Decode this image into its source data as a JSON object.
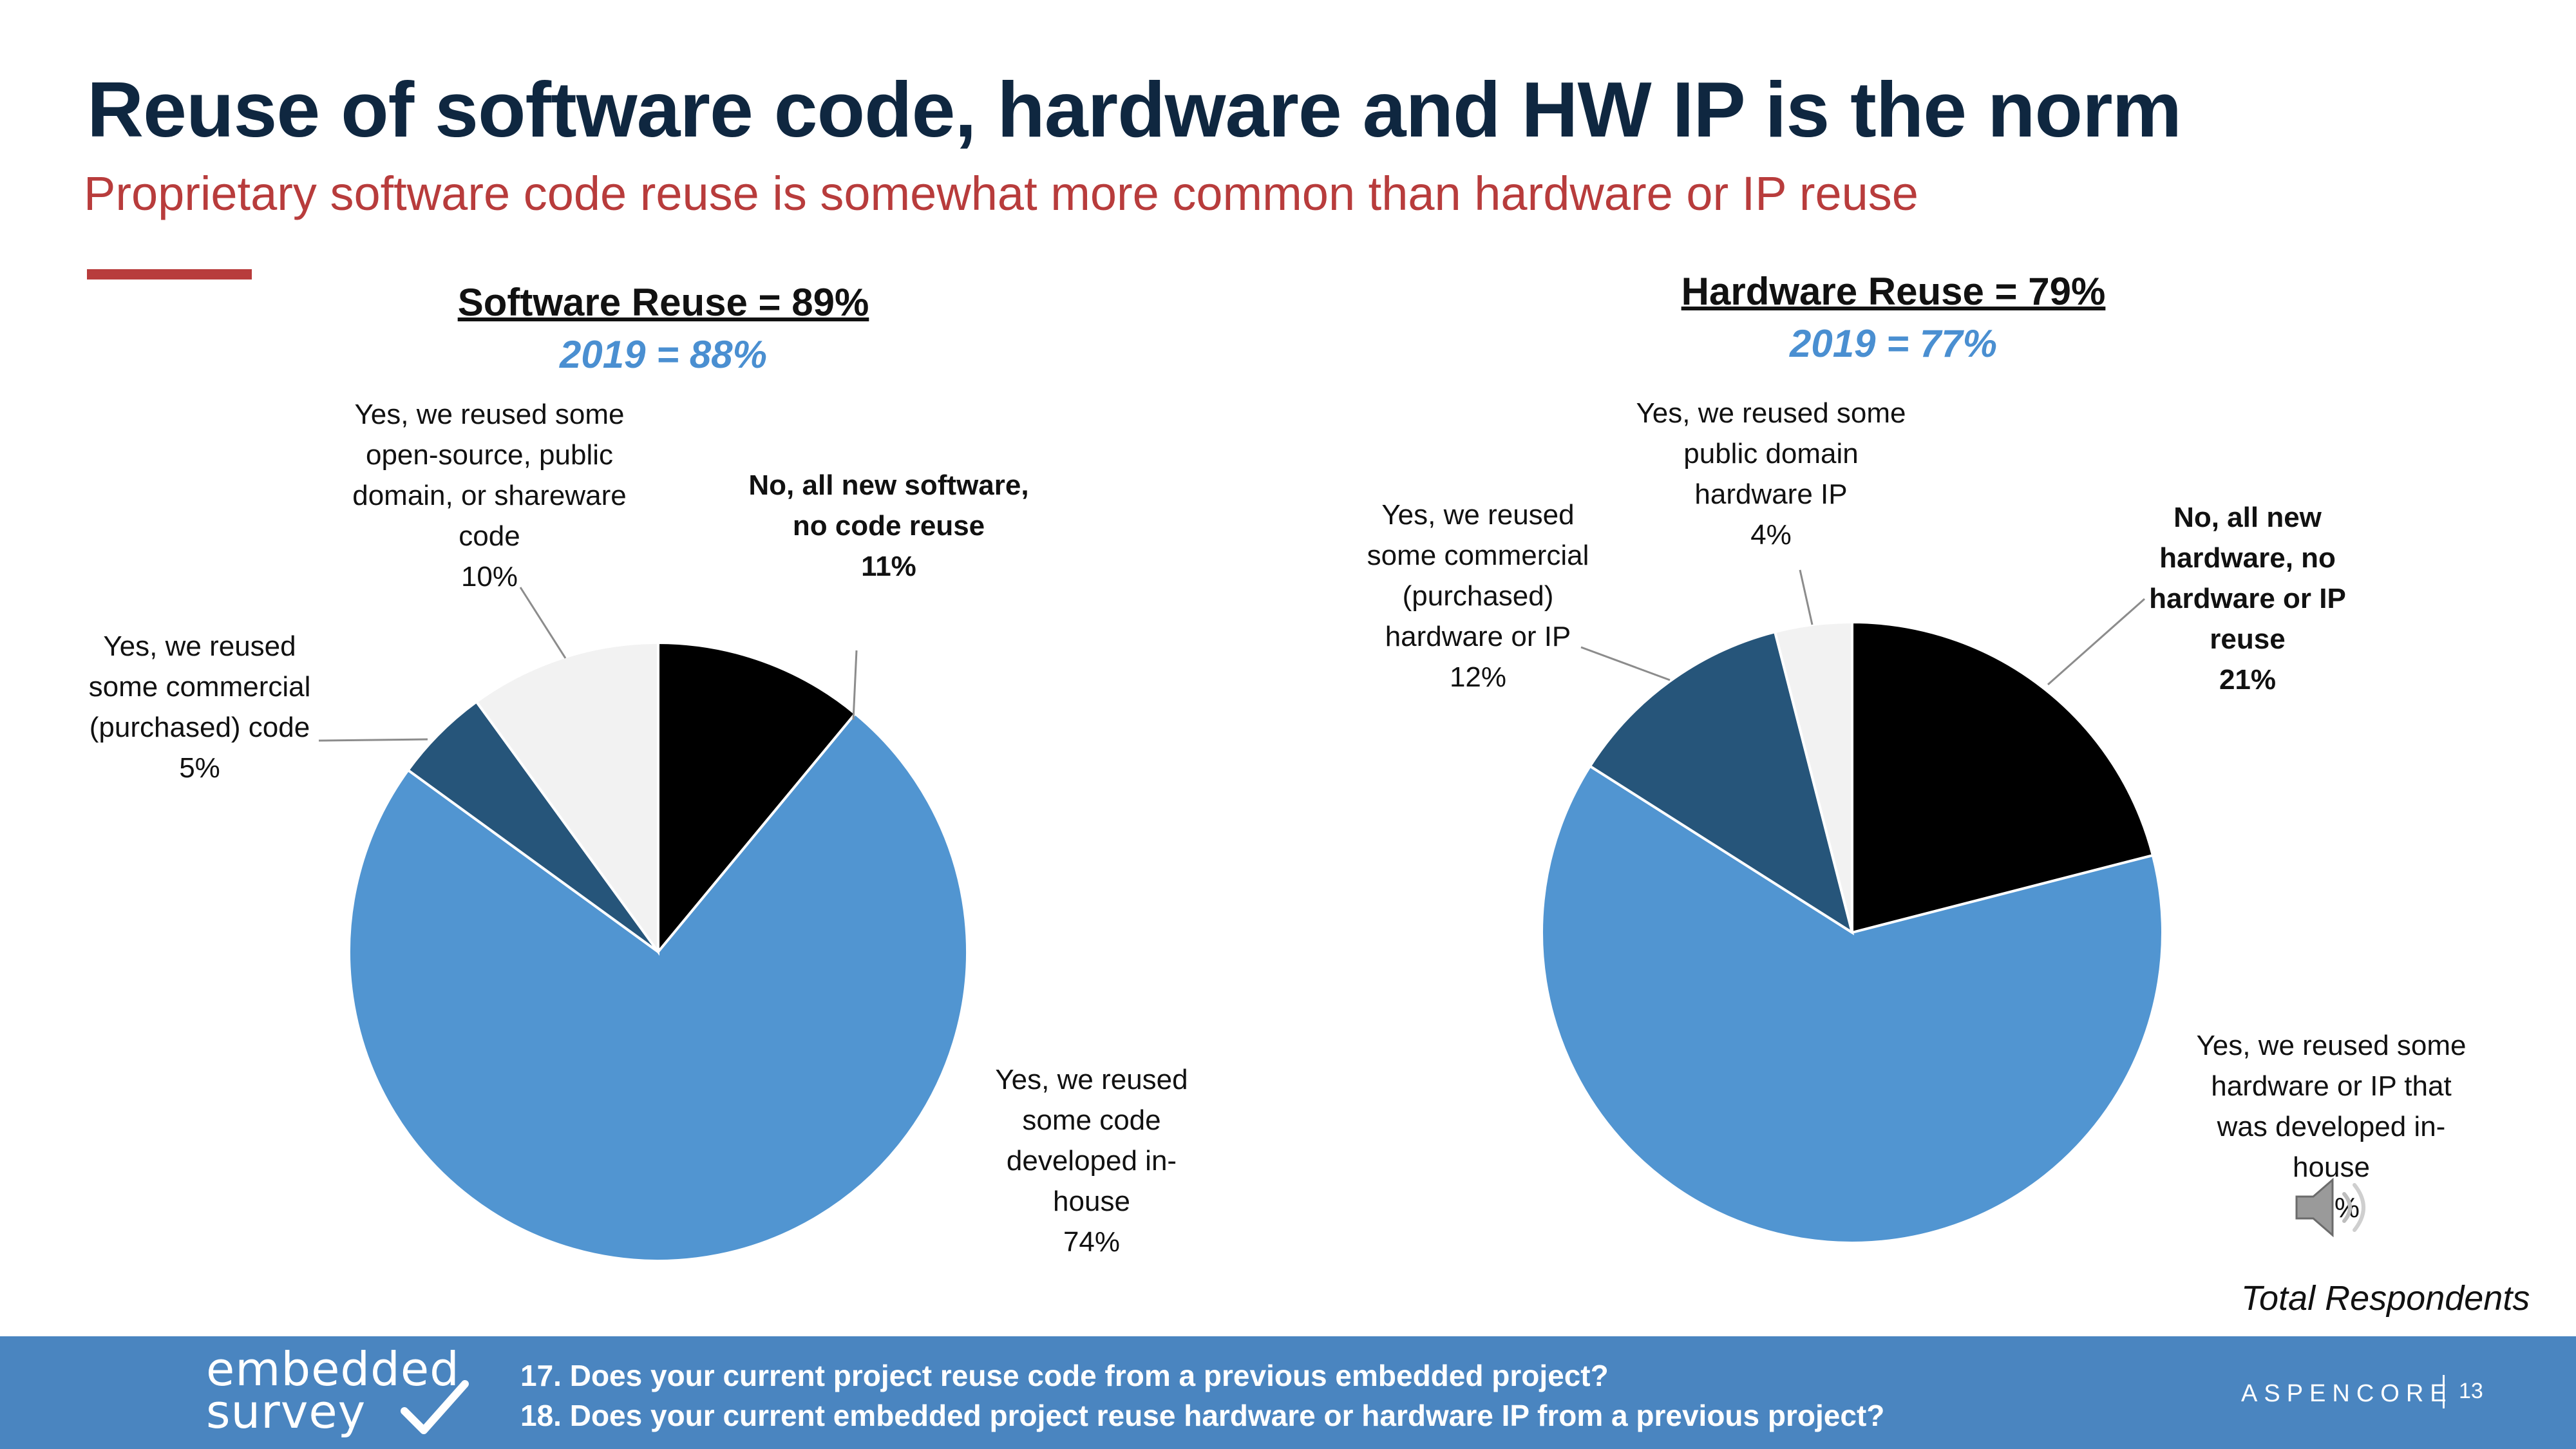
{
  "title": "Reuse of software code, hardware and HW IP is the norm",
  "subtitle": "Proprietary software code reuse is somewhat more common than hardware or IP reuse",
  "note": "Total Respondents",
  "footer": {
    "logo_line1": "embedded",
    "logo_line2": "survey",
    "question1": "17. Does your current project reuse code from a previous embedded project?",
    "question2": "18. Does your current embedded project reuse hardware or hardware IP from a previous project?",
    "brand": "ASPENCORE",
    "page": "13"
  },
  "colors": {
    "title": "#0f2740",
    "accent_red": "#b83c3c",
    "blue": "#5195d1",
    "navy": "#26557a",
    "black": "#000000",
    "light": "#f2f2f2",
    "footer": "#4a85c0"
  },
  "chart_data": [
    {
      "type": "pie",
      "title": "Software Reuse = 89%",
      "subtitle": "2019 = 88%",
      "slices": [
        {
          "label": "No, all new software, no code reuse",
          "value": 11,
          "display": "11%",
          "color": "#000000"
        },
        {
          "label": "Yes, we reused some code developed in-house",
          "value": 74,
          "display": "74%",
          "color": "#5195d1"
        },
        {
          "label": "Yes, we reused some commercial (purchased) code",
          "value": 5,
          "display": "5%",
          "color": "#26557a"
        },
        {
          "label": "Yes, we reused some open-source, public domain, or shareware code",
          "value": 10,
          "display": "10%",
          "color": "#f2f2f2"
        }
      ]
    },
    {
      "type": "pie",
      "title": "Hardware Reuse = 79%",
      "subtitle": "2019 = 77%",
      "slices": [
        {
          "label": "No, all new hardware, no hardware or IP reuse",
          "value": 21,
          "display": "21%",
          "color": "#000000"
        },
        {
          "label": "Yes, we reused some hardware or IP that was developed in-house",
          "value": 63,
          "display": "63%",
          "color": "#5195d1"
        },
        {
          "label": "Yes, we reused some commercial (purchased) hardware or IP",
          "value": 12,
          "display": "12%",
          "color": "#26557a"
        },
        {
          "label": "Yes, we reused some public domain hardware IP",
          "value": 4,
          "display": "4%",
          "color": "#f2f2f2"
        }
      ]
    }
  ]
}
